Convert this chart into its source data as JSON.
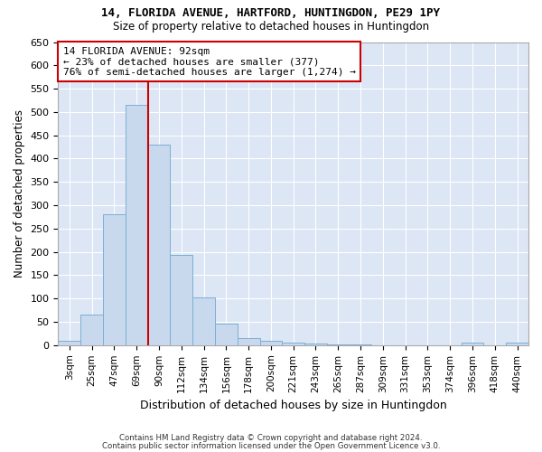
{
  "title1": "14, FLORIDA AVENUE, HARTFORD, HUNTINGDON, PE29 1PY",
  "title2": "Size of property relative to detached houses in Huntingdon",
  "xlabel": "Distribution of detached houses by size in Huntingdon",
  "ylabel": "Number of detached properties",
  "bin_labels": [
    "3sqm",
    "25sqm",
    "47sqm",
    "69sqm",
    "90sqm",
    "112sqm",
    "134sqm",
    "156sqm",
    "178sqm",
    "200sqm",
    "221sqm",
    "243sqm",
    "265sqm",
    "287sqm",
    "309sqm",
    "331sqm",
    "353sqm",
    "374sqm",
    "396sqm",
    "418sqm",
    "440sqm"
  ],
  "bar_values": [
    10,
    65,
    280,
    515,
    430,
    193,
    102,
    47,
    15,
    9,
    5,
    3,
    2,
    2,
    0,
    0,
    0,
    0,
    5,
    0,
    5
  ],
  "bar_color": "#c9d9ed",
  "bar_edge_color": "#7bafd4",
  "property_line_bin": 4,
  "annotation_text": "14 FLORIDA AVENUE: 92sqm\n← 23% of detached houses are smaller (377)\n76% of semi-detached houses are larger (1,274) →",
  "annotation_box_color": "#ffffff",
  "annotation_box_edge": "#cc0000",
  "line_color": "#cc0000",
  "ylim": [
    0,
    650
  ],
  "yticks": [
    0,
    50,
    100,
    150,
    200,
    250,
    300,
    350,
    400,
    450,
    500,
    550,
    600,
    650
  ],
  "fig_bg": "#ffffff",
  "background_color": "#dce6f5",
  "grid_color": "#ffffff",
  "footer1": "Contains HM Land Registry data © Crown copyright and database right 2024.",
  "footer2": "Contains public sector information licensed under the Open Government Licence v3.0."
}
